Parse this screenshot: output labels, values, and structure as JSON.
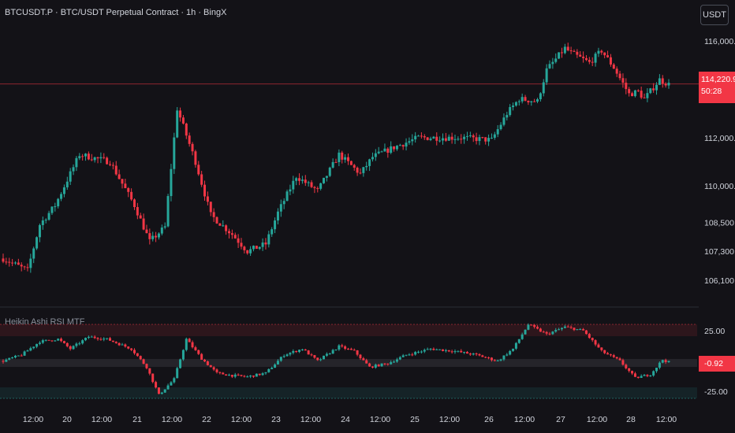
{
  "header": {
    "symbol_title": "BTCUSDT.P · BTC/USDT Perpetual Contract · 1h · BingX",
    "currency_button": "USDT"
  },
  "indicator": {
    "title": "Heikin Ashi RSI MTF",
    "current_value": "-0.92",
    "upper_level": 25,
    "lower_level": -25
  },
  "price_tag": {
    "price": "114,220.9",
    "countdown": "50:28"
  },
  "colors": {
    "background": "#131217",
    "bull": "#26a69a",
    "bear": "#f23645",
    "text": "#d1d4dc"
  },
  "chart_data": {
    "type": "candlestick",
    "y_axis_ticks": [
      106100,
      107300,
      108500,
      110000,
      112000,
      116000
    ],
    "y_axis_labels": [
      "106,100.0",
      "107,300.0",
      "108,500.0",
      "110,000.0",
      "112,000.0",
      "116,000.0"
    ],
    "current_price": 114220.9,
    "x_axis_labels": [
      "12:00",
      "20",
      "12:00",
      "21",
      "12:00",
      "22",
      "12:00",
      "23",
      "12:00",
      "24",
      "12:00",
      "25",
      "12:00",
      "26",
      "12:00",
      "27",
      "12:00",
      "28",
      "12:00"
    ],
    "price_keypoints": [
      {
        "i": 0,
        "p": 107000
      },
      {
        "i": 8,
        "p": 106500
      },
      {
        "i": 12,
        "p": 108400
      },
      {
        "i": 17,
        "p": 109200
      },
      {
        "i": 25,
        "p": 111300
      },
      {
        "i": 35,
        "p": 111000
      },
      {
        "i": 43,
        "p": 109200
      },
      {
        "i": 48,
        "p": 107700
      },
      {
        "i": 53,
        "p": 108300
      },
      {
        "i": 57,
        "p": 113200
      },
      {
        "i": 63,
        "p": 111000
      },
      {
        "i": 68,
        "p": 108800
      },
      {
        "i": 75,
        "p": 108000
      },
      {
        "i": 80,
        "p": 107300
      },
      {
        "i": 86,
        "p": 107600
      },
      {
        "i": 90,
        "p": 108900
      },
      {
        "i": 96,
        "p": 110400
      },
      {
        "i": 103,
        "p": 109800
      },
      {
        "i": 110,
        "p": 111300
      },
      {
        "i": 117,
        "p": 110500
      },
      {
        "i": 121,
        "p": 111200
      },
      {
        "i": 128,
        "p": 111600
      },
      {
        "i": 136,
        "p": 112000
      },
      {
        "i": 150,
        "p": 112000
      },
      {
        "i": 160,
        "p": 111900
      },
      {
        "i": 165,
        "p": 113000
      },
      {
        "i": 169,
        "p": 113600
      },
      {
        "i": 175,
        "p": 113500
      },
      {
        "i": 178,
        "p": 114800
      },
      {
        "i": 184,
        "p": 115700
      },
      {
        "i": 186,
        "p": 115500
      },
      {
        "i": 192,
        "p": 115100
      },
      {
        "i": 196,
        "p": 115600
      },
      {
        "i": 200,
        "p": 114900
      },
      {
        "i": 205,
        "p": 113800
      },
      {
        "i": 208,
        "p": 113900
      },
      {
        "i": 210,
        "p": 113600
      },
      {
        "i": 215,
        "p": 114400
      },
      {
        "i": 218,
        "p": 114200
      }
    ],
    "rsi_keypoints": [
      {
        "i": 0,
        "v": 0
      },
      {
        "i": 6,
        "v": 5
      },
      {
        "i": 12,
        "v": 16
      },
      {
        "i": 18,
        "v": 18
      },
      {
        "i": 22,
        "v": 10
      },
      {
        "i": 28,
        "v": 20
      },
      {
        "i": 34,
        "v": 18
      },
      {
        "i": 42,
        "v": 10
      },
      {
        "i": 47,
        "v": -5
      },
      {
        "i": 51,
        "v": -28
      },
      {
        "i": 56,
        "v": -15
      },
      {
        "i": 60,
        "v": 18
      },
      {
        "i": 65,
        "v": 2
      },
      {
        "i": 70,
        "v": -10
      },
      {
        "i": 75,
        "v": -12
      },
      {
        "i": 80,
        "v": -13
      },
      {
        "i": 86,
        "v": -10
      },
      {
        "i": 92,
        "v": 5
      },
      {
        "i": 98,
        "v": 10
      },
      {
        "i": 103,
        "v": 0
      },
      {
        "i": 110,
        "v": 12
      },
      {
        "i": 115,
        "v": 8
      },
      {
        "i": 120,
        "v": -5
      },
      {
        "i": 126,
        "v": -2
      },
      {
        "i": 132,
        "v": 5
      },
      {
        "i": 140,
        "v": 10
      },
      {
        "i": 148,
        "v": 8
      },
      {
        "i": 155,
        "v": 5
      },
      {
        "i": 162,
        "v": 0
      },
      {
        "i": 167,
        "v": 10
      },
      {
        "i": 172,
        "v": 30
      },
      {
        "i": 178,
        "v": 22
      },
      {
        "i": 184,
        "v": 28
      },
      {
        "i": 190,
        "v": 25
      },
      {
        "i": 196,
        "v": 8
      },
      {
        "i": 202,
        "v": 0
      },
      {
        "i": 207,
        "v": -14
      },
      {
        "i": 212,
        "v": -11
      },
      {
        "i": 216,
        "v": 1
      },
      {
        "i": 218,
        "v": -1
      }
    ]
  }
}
